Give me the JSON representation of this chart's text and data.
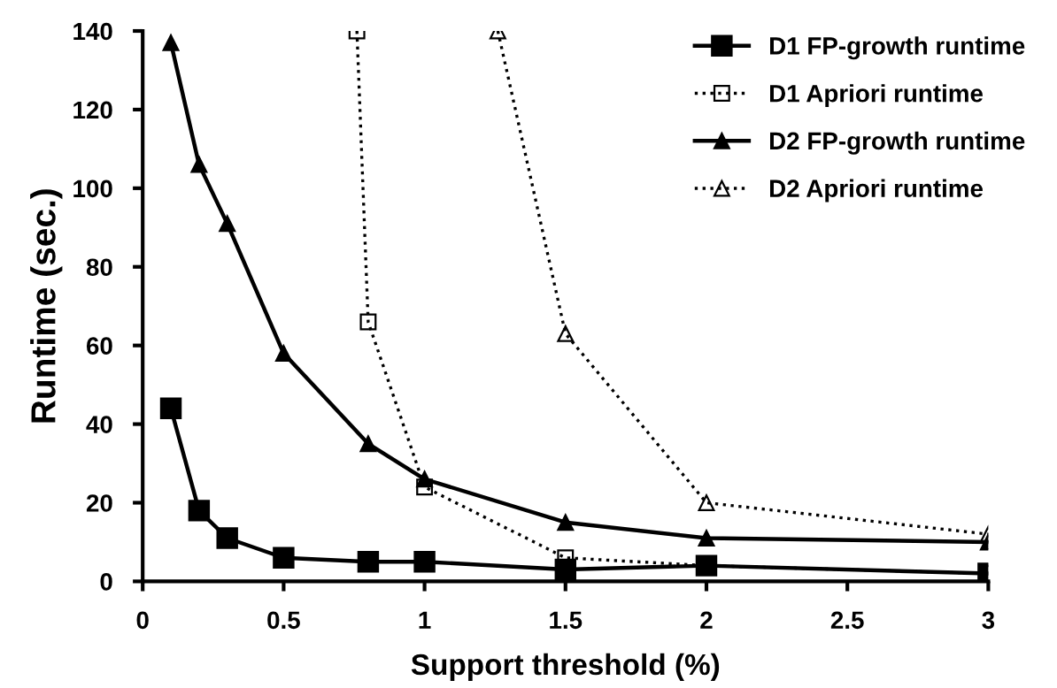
{
  "chart_data": {
    "type": "line",
    "xlabel": "Support threshold (%)",
    "ylabel": "Runtime (sec.)",
    "xlim": [
      0,
      3
    ],
    "xticks": [
      0,
      0.5,
      1,
      1.5,
      2,
      2.5,
      3
    ],
    "ylim": [
      0,
      140
    ],
    "yticks": [
      0,
      20,
      40,
      60,
      80,
      100,
      120,
      140
    ],
    "grid": false,
    "legend": "top right",
    "series": [
      {
        "name": "D1 FP-growth runtime",
        "color": "#000000",
        "marker": "square",
        "line_style": "solid",
        "x": [
          0.1,
          0.2,
          0.3,
          0.5,
          0.8,
          1,
          1.5,
          2,
          3
        ],
        "values": [
          44,
          18,
          11,
          6,
          5,
          5,
          3,
          4,
          2
        ]
      },
      {
        "name": "D1 Apriori runtime",
        "color": "#000000",
        "marker": "square",
        "line_style": "dotted",
        "x": [
          0.76,
          0.8,
          1,
          1.5,
          2,
          3
        ],
        "values": [
          140,
          66,
          24,
          6,
          4,
          2
        ]
      },
      {
        "name": "D2 FP-growth runtime",
        "color": "#000000",
        "marker": "triangle",
        "line_style": "solid",
        "x": [
          0.1,
          0.2,
          0.3,
          0.5,
          0.8,
          1,
          1.5,
          2,
          3
        ],
        "values": [
          137,
          106,
          91,
          58,
          35,
          26,
          15,
          11,
          10
        ]
      },
      {
        "name": "D2 Apriori runtime",
        "color": "#000000",
        "marker": "triangle",
        "line_style": "dotted",
        "x": [
          1.26,
          1.5,
          2,
          3
        ],
        "values": [
          140,
          63,
          20,
          12
        ]
      }
    ]
  }
}
